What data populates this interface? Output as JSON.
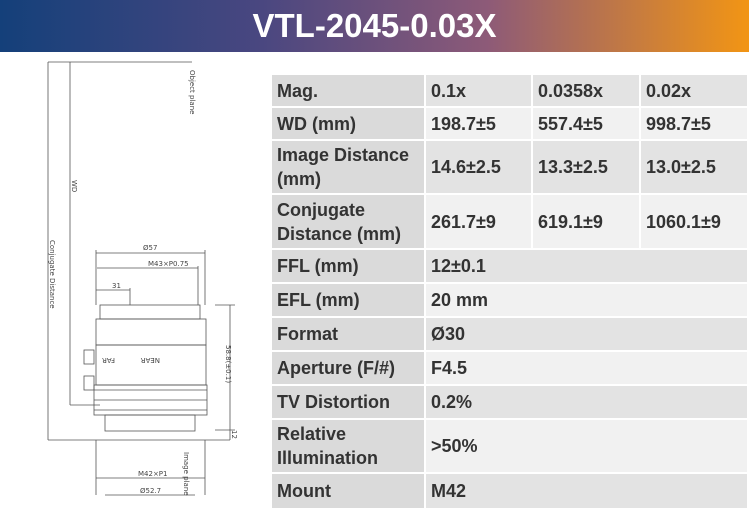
{
  "header": {
    "title": "VTL-2045-0.03X"
  },
  "drawing": {
    "labels": [
      "Object plane",
      "WD",
      "Conjugate Distance",
      "Ø57",
      "M43×P0.75",
      "31",
      "58.8(±0.1)",
      "12",
      "Image plane",
      "M42×P1",
      "Ø52.7",
      "FAR",
      "NEAR"
    ]
  },
  "table": {
    "rows": [
      [
        "Mag.",
        "0.1x",
        "0.0358x",
        "0.02x"
      ],
      [
        "WD (mm)",
        "198.7±5",
        "557.4±5",
        "998.7±5"
      ],
      [
        "Image Distance (mm)",
        "14.6±2.5",
        "13.3±2.5",
        "13.0±2.5"
      ],
      [
        "Conjugate Distance (mm)",
        "261.7±9",
        "619.1±9",
        "1060.1±9"
      ],
      [
        "FFL (mm)",
        "12±0.1"
      ],
      [
        "EFL (mm)",
        "20 mm"
      ],
      [
        "Format",
        "Ø30"
      ],
      [
        "Aperture (F/#)",
        "F4.5"
      ],
      [
        "TV Distortion",
        "0.2%"
      ],
      [
        "Relative Illumination",
        ">50%"
      ],
      [
        "Mount",
        "M42"
      ]
    ]
  }
}
